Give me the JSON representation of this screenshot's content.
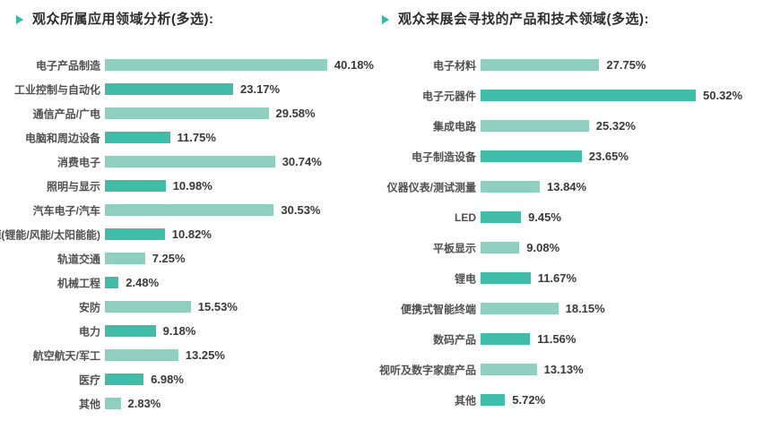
{
  "colors": {
    "bar_light": "#8FCFC0",
    "bar_dark": "#3FBDA8",
    "title_marker": "#2FB9A6",
    "title_text": "#2d2d2d",
    "label_text": "#4f4f4f",
    "value_text": "#383838"
  },
  "chart_data": [
    {
      "type": "bar",
      "orientation": "horizontal",
      "title": "观众所属应用领域分析(多选):",
      "categories": [
        "电子产品制造",
        "工业控制与自动化",
        "通信产品/广电",
        "电脑和周边设备",
        "消费电子",
        "照明与显示",
        "汽车电子/汽车",
        "新能源(锂能/风能/太阳能能)",
        "轨道交通",
        "机械工程",
        "安防",
        "电力",
        "航空航天/军工",
        "医疗",
        "其他"
      ],
      "values": [
        40.18,
        23.17,
        29.58,
        11.75,
        30.74,
        10.98,
        30.53,
        10.82,
        7.25,
        2.48,
        15.53,
        9.18,
        13.25,
        6.98,
        2.83
      ],
      "value_labels": [
        "40.18%",
        "23.17%",
        "29.58%",
        "11.75%",
        "30.74%",
        "10.98%",
        "30.53%",
        "10.82%",
        "7.25%",
        "2.48%",
        "15.53%",
        "9.18%",
        "13.25%",
        "6.98%",
        "2.83%"
      ],
      "xlim": [
        0,
        42
      ],
      "grid": false,
      "legend": false,
      "bar_colors_alternating": [
        "#8FCFC0",
        "#3FBDA8"
      ]
    },
    {
      "type": "bar",
      "orientation": "horizontal",
      "title": "观众来展会寻找的产品和技术领域(多选):",
      "categories": [
        "电子材料",
        "电子元器件",
        "集成电路",
        "电子制造设备",
        "仪器仪表/测试测量",
        "LED",
        "平板显示",
        "锂电",
        "便携式智能终端",
        "数码产品",
        "视听及数字家庭产品",
        "其他"
      ],
      "values": [
        27.75,
        50.32,
        25.32,
        23.65,
        13.84,
        9.45,
        9.08,
        11.67,
        18.15,
        11.56,
        13.13,
        5.72
      ],
      "value_labels": [
        "27.75%",
        "50.32%",
        "25.32%",
        "23.65%",
        "13.84%",
        "9.45%",
        "9.08%",
        "11.67%",
        "18.15%",
        "11.56%",
        "13.13%",
        "5.72%"
      ],
      "xlim": [
        0,
        52
      ],
      "grid": false,
      "legend": false,
      "bar_colors_alternating": [
        "#8FCFC0",
        "#3FBDA8"
      ]
    }
  ]
}
